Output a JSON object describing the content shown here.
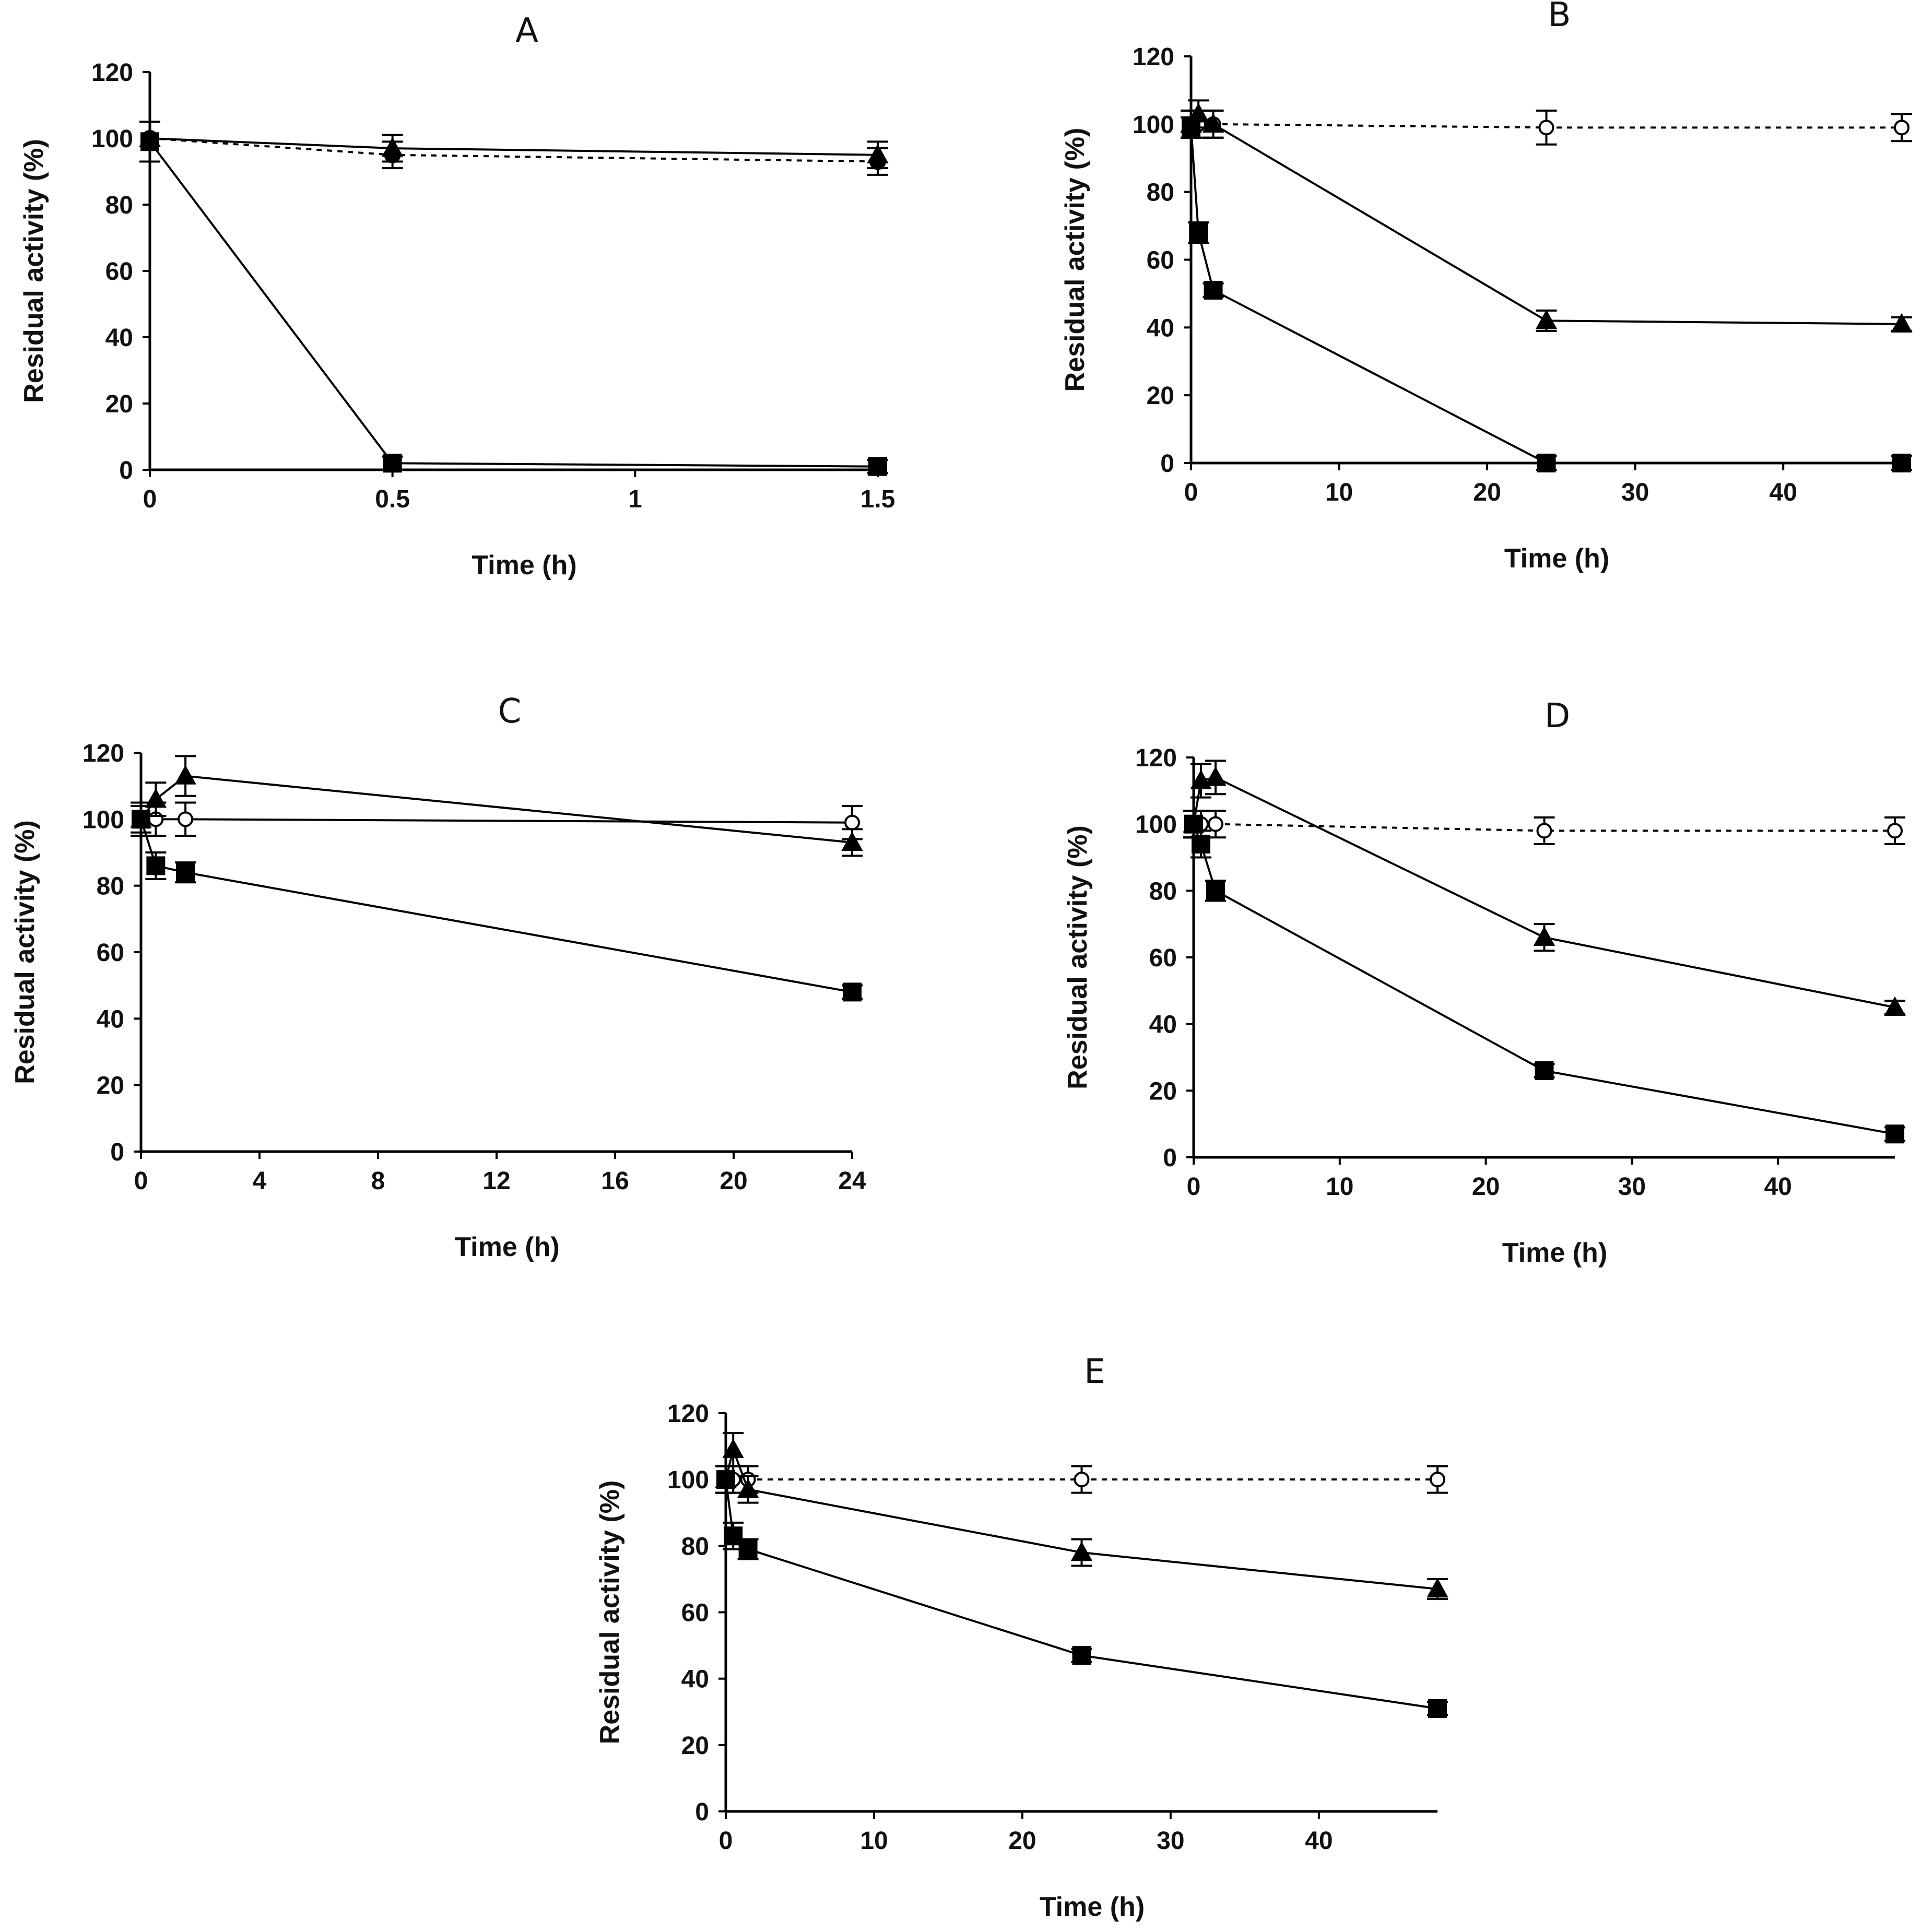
{
  "chart_data": [
    {
      "type": "line",
      "title": "A",
      "xlabel": "Time (h)",
      "ylabel": "Residual activity (%)",
      "xlim": [
        0,
        1.5
      ],
      "ylim": [
        0,
        120
      ],
      "xticks": [
        0,
        0.5,
        1,
        1.5
      ],
      "xtick_labels": [
        "0",
        "0.5",
        "1",
        "1.5"
      ],
      "yticks": [
        0,
        20,
        40,
        60,
        80,
        100,
        120
      ],
      "ytick_labels": [
        "0",
        "20",
        "40",
        "60",
        "80",
        "100",
        "120"
      ],
      "series": [
        {
          "name": "circle",
          "marker": "circle-filled",
          "line": "dashed",
          "x": [
            0,
            0.5,
            1.5
          ],
          "y": [
            100,
            95,
            93
          ],
          "err": [
            0,
            4,
            4
          ]
        },
        {
          "name": "triangle",
          "marker": "triangle",
          "line": "solid",
          "x": [
            0,
            0.5,
            1.5
          ],
          "y": [
            100,
            97,
            95
          ],
          "err": [
            0,
            4,
            4
          ]
        },
        {
          "name": "square",
          "marker": "square",
          "line": "solid",
          "x": [
            0,
            0.5,
            1.5
          ],
          "y": [
            99,
            2,
            1
          ],
          "err": [
            6,
            2,
            2
          ]
        }
      ]
    },
    {
      "type": "line",
      "title": "B",
      "xlabel": "Time (h)",
      "ylabel": "Residual activity (%)",
      "xlim": [
        0,
        48
      ],
      "ylim": [
        0,
        120
      ],
      "xticks": [
        0,
        10,
        20,
        30,
        40
      ],
      "xtick_labels": [
        "0",
        "10",
        "20",
        "30",
        "40"
      ],
      "yticks": [
        0,
        20,
        40,
        60,
        80,
        100,
        120
      ],
      "ytick_labels": [
        "0",
        "20",
        "40",
        "60",
        "80",
        "100",
        "120"
      ],
      "series": [
        {
          "name": "circle",
          "marker": "circle-open",
          "line": "dashed",
          "x": [
            0,
            0.5,
            1.5,
            24,
            48
          ],
          "y": [
            100,
            100,
            100,
            99,
            99
          ],
          "err": [
            4,
            4,
            4,
            5,
            4
          ]
        },
        {
          "name": "triangle",
          "marker": "triangle",
          "line": "solid",
          "x": [
            0,
            0.5,
            1.5,
            24,
            48
          ],
          "y": [
            100,
            103,
            100,
            42,
            41
          ],
          "err": [
            4,
            4,
            4,
            3,
            2
          ]
        },
        {
          "name": "square",
          "marker": "square",
          "line": "solid",
          "x": [
            0,
            0.5,
            1.5,
            24,
            48
          ],
          "y": [
            99,
            68,
            51,
            0,
            0
          ],
          "err": [
            3,
            3,
            2,
            2,
            2
          ]
        }
      ]
    },
    {
      "type": "line",
      "title": "C",
      "xlabel": "Time (h)",
      "ylabel": "Residual activity (%)",
      "xlim": [
        0,
        24
      ],
      "ylim": [
        0,
        120
      ],
      "xticks": [
        0,
        4,
        8,
        12,
        16,
        20,
        24
      ],
      "xtick_labels": [
        "0",
        "4",
        "8",
        "12",
        "16",
        "20",
        "24"
      ],
      "yticks": [
        0,
        20,
        40,
        60,
        80,
        100,
        120
      ],
      "ytick_labels": [
        "0",
        "20",
        "40",
        "60",
        "80",
        "100",
        "120"
      ],
      "series": [
        {
          "name": "circle",
          "marker": "circle-open",
          "line": "solid",
          "x": [
            0,
            0.5,
            1.5,
            24
          ],
          "y": [
            100,
            100,
            100,
            99
          ],
          "err": [
            5,
            5,
            5,
            5
          ]
        },
        {
          "name": "triangle",
          "marker": "triangle",
          "line": "solid",
          "x": [
            0,
            0.5,
            1.5,
            24
          ],
          "y": [
            100,
            106,
            113,
            93
          ],
          "err": [
            5,
            5,
            6,
            4
          ]
        },
        {
          "name": "square",
          "marker": "square",
          "line": "solid",
          "x": [
            0,
            0.5,
            1.5,
            24
          ],
          "y": [
            100,
            86,
            84,
            48
          ],
          "err": [
            4,
            4,
            3,
            2
          ]
        }
      ]
    },
    {
      "type": "line",
      "title": "D",
      "xlabel": "Time (h)",
      "ylabel": "Residual activity (%)",
      "xlim": [
        0,
        48
      ],
      "ylim": [
        0,
        120
      ],
      "xticks": [
        0,
        10,
        20,
        30,
        40
      ],
      "xtick_labels": [
        "0",
        "10",
        "20",
        "30",
        "40"
      ],
      "yticks": [
        0,
        20,
        40,
        60,
        80,
        100,
        120
      ],
      "ytick_labels": [
        "0",
        "20",
        "40",
        "60",
        "80",
        "100",
        "120"
      ],
      "series": [
        {
          "name": "circle",
          "marker": "circle-open",
          "line": "dashed",
          "x": [
            0,
            0.5,
            1.5,
            24,
            48
          ],
          "y": [
            100,
            100,
            100,
            98,
            98
          ],
          "err": [
            4,
            4,
            4,
            4,
            4
          ]
        },
        {
          "name": "triangle",
          "marker": "triangle",
          "line": "solid",
          "x": [
            0,
            0.5,
            1.5,
            24,
            48
          ],
          "y": [
            100,
            113,
            114,
            66,
            45
          ],
          "err": [
            4,
            5,
            5,
            4,
            2
          ]
        },
        {
          "name": "square",
          "marker": "square",
          "line": "solid",
          "x": [
            0,
            0.5,
            1.5,
            24,
            48
          ],
          "y": [
            100,
            94,
            80,
            26,
            7
          ],
          "err": [
            4,
            4,
            3,
            2,
            2
          ]
        }
      ]
    },
    {
      "type": "line",
      "title": "E",
      "xlabel": "Time (h)",
      "ylabel": "Residual activity (%)",
      "xlim": [
        0,
        48
      ],
      "ylim": [
        0,
        120
      ],
      "xticks": [
        0,
        10,
        20,
        30,
        40
      ],
      "xtick_labels": [
        "0",
        "10",
        "20",
        "30",
        "40"
      ],
      "yticks": [
        0,
        20,
        40,
        60,
        80,
        100,
        120
      ],
      "ytick_labels": [
        "0",
        "20",
        "40",
        "60",
        "80",
        "100",
        "120"
      ],
      "series": [
        {
          "name": "circle",
          "marker": "circle-open",
          "line": "dashed",
          "x": [
            0,
            0.5,
            1.5,
            24,
            48
          ],
          "y": [
            100,
            100,
            100,
            100,
            100
          ],
          "err": [
            4,
            4,
            4,
            4,
            4
          ]
        },
        {
          "name": "triangle",
          "marker": "triangle",
          "line": "solid",
          "x": [
            0,
            0.5,
            1.5,
            24,
            48
          ],
          "y": [
            100,
            109,
            97,
            78,
            67
          ],
          "err": [
            4,
            5,
            4,
            4,
            3
          ]
        },
        {
          "name": "square",
          "marker": "square",
          "line": "solid",
          "x": [
            0,
            0.5,
            1.5,
            24,
            48
          ],
          "y": [
            100,
            83,
            79,
            47,
            31
          ],
          "err": [
            4,
            4,
            3,
            2,
            2
          ]
        }
      ]
    }
  ]
}
